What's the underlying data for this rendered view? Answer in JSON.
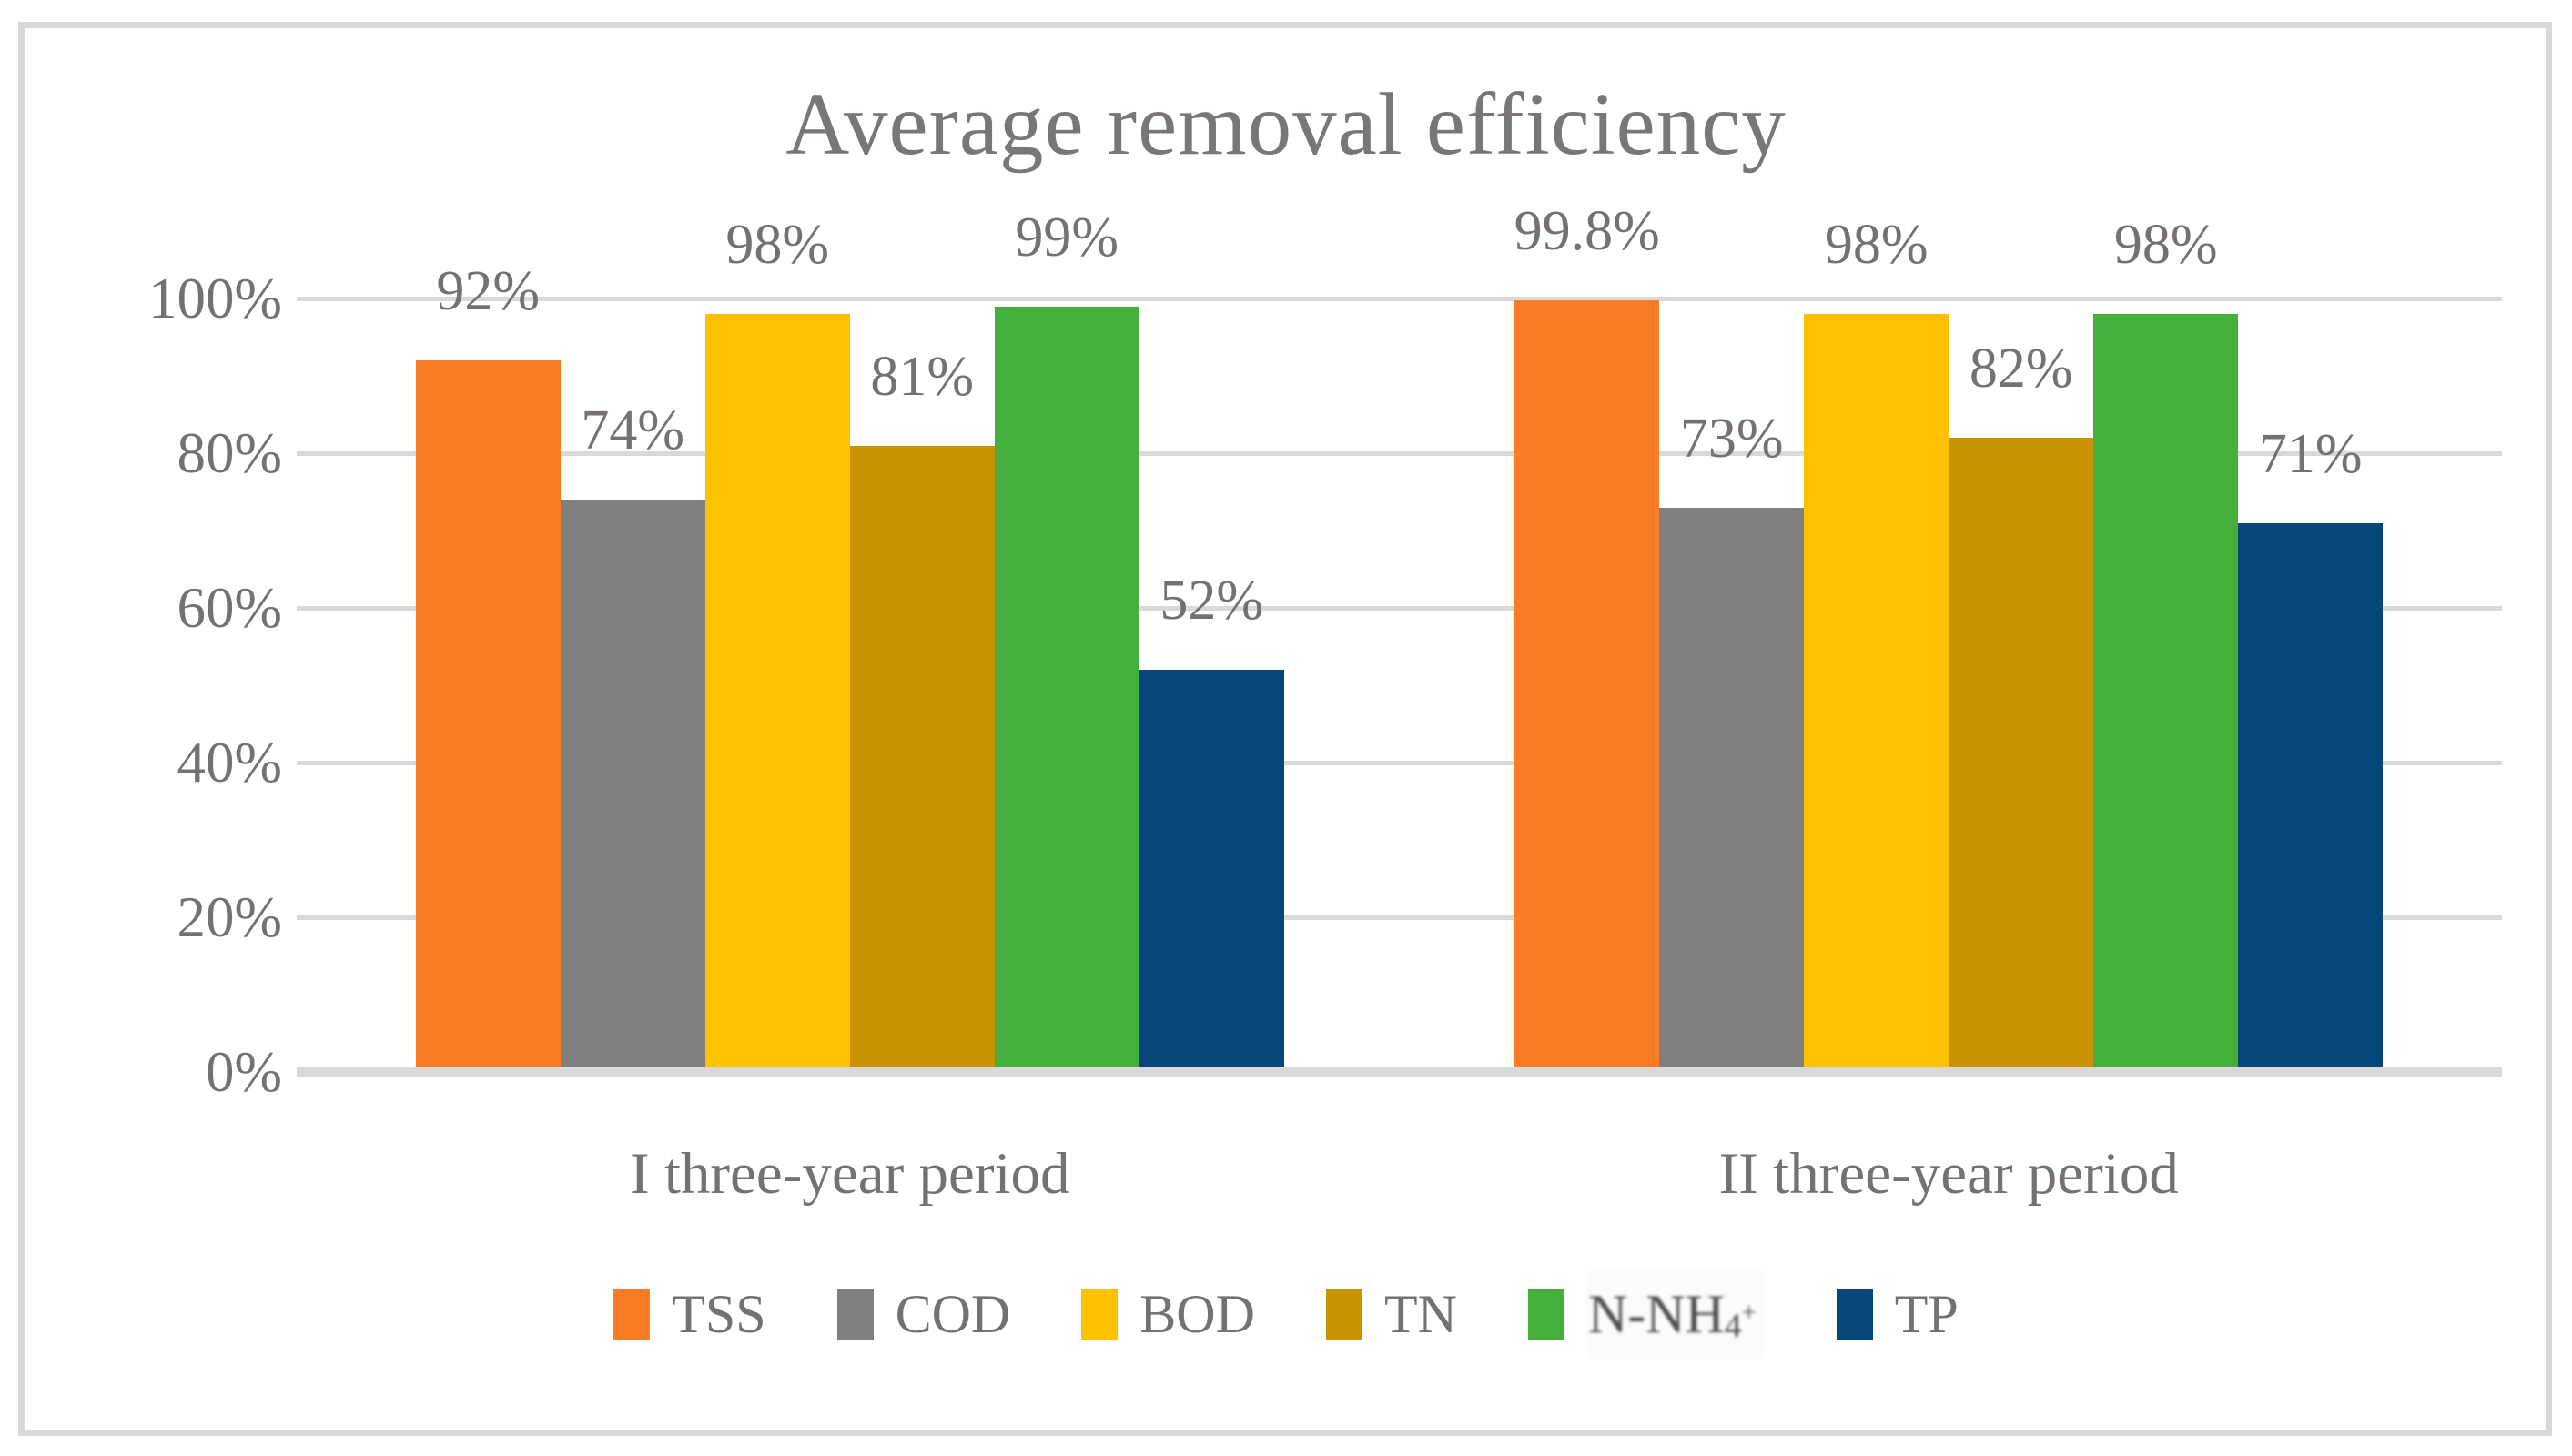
{
  "page": {
    "background": "#FFFFFF",
    "border_color": "#D9D9D9"
  },
  "chart_data": {
    "type": "bar",
    "title": "Average removal efficiency",
    "title_color": "#7B7676",
    "text_color": "#767171",
    "grid_color": "#D9D9D9",
    "grid": true,
    "legend_position": "bottom",
    "categories": [
      "I three-year period",
      "II three-year period"
    ],
    "y_ticks": [
      "0%",
      "20%",
      "40%",
      "60%",
      "80%",
      "100%"
    ],
    "ylim": [
      0,
      100
    ],
    "series": [
      {
        "name": "TSS",
        "color": "#FB7C26",
        "values": [
          92,
          99.8
        ],
        "data_labels": [
          "92%",
          "99.8%"
        ]
      },
      {
        "name": "COD",
        "color": "#7F7F7F",
        "values": [
          74,
          73
        ],
        "data_labels": [
          "74%",
          "73%"
        ]
      },
      {
        "name": "BOD",
        "color": "#FFC000",
        "values": [
          98,
          98
        ],
        "data_labels": [
          "98%",
          "98%"
        ]
      },
      {
        "name": "TN",
        "color": "#C89200",
        "values": [
          81,
          82
        ],
        "data_labels": [
          "81%",
          "82%"
        ]
      },
      {
        "name": "N-NH4+",
        "color": "#45AF3C",
        "values": [
          99,
          98
        ],
        "data_labels": [
          "99%",
          "98%"
        ],
        "legend_rich": {
          "base": "N-NH",
          "sub": "4",
          "sup": "+"
        },
        "legend_blurred": true
      },
      {
        "name": "TP",
        "color": "#05477B",
        "values": [
          52,
          71
        ],
        "data_labels": [
          "52%",
          "71%"
        ]
      }
    ]
  }
}
